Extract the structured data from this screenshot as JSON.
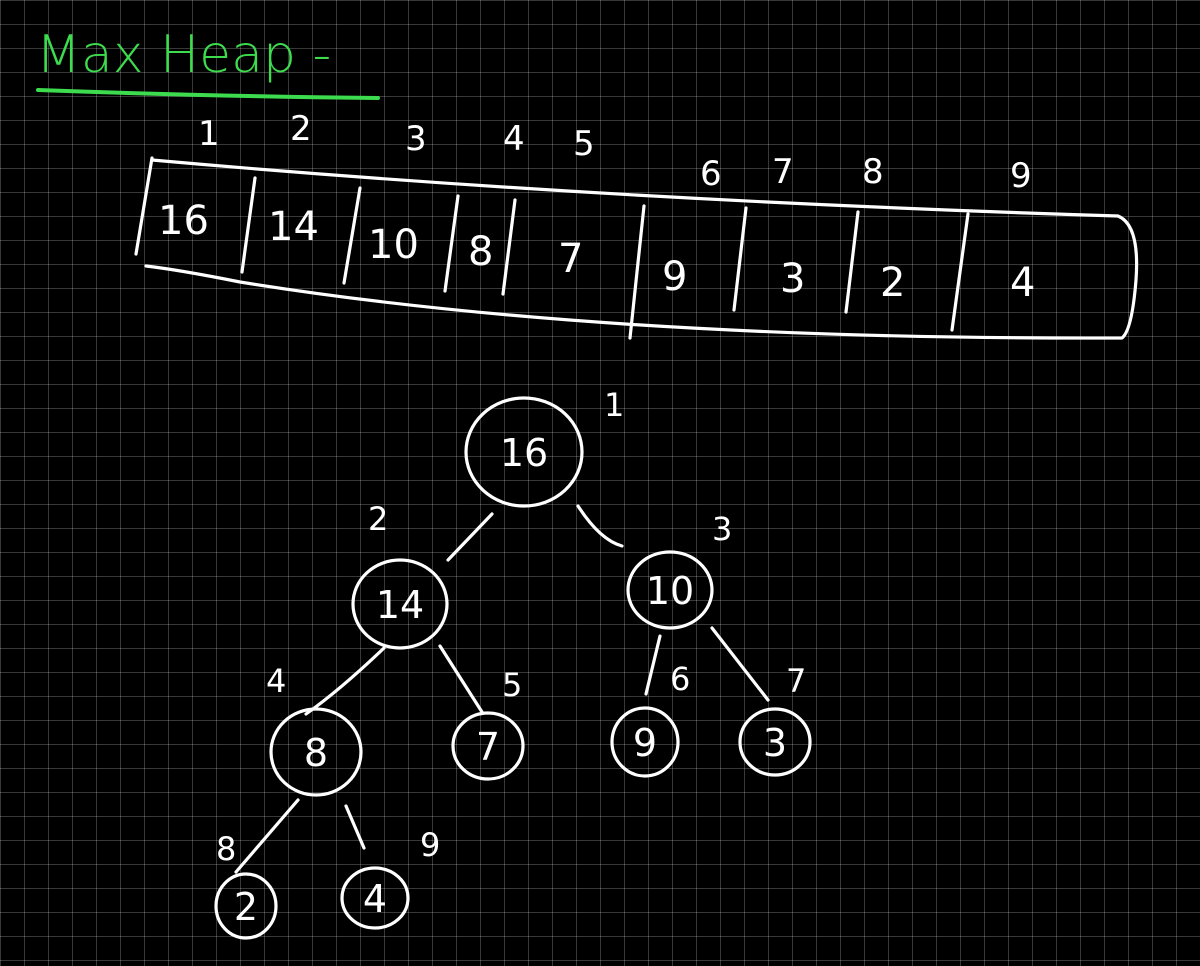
{
  "title": "Max Heap -",
  "array": {
    "indices": [
      "1",
      "2",
      "3",
      "4",
      "5",
      "6",
      "7",
      "8",
      "9"
    ],
    "values": [
      "16",
      "14",
      "10",
      "8",
      "7",
      "9",
      "3",
      "2",
      "4"
    ]
  },
  "tree": {
    "nodes": [
      {
        "index": "1",
        "value": "16"
      },
      {
        "index": "2",
        "value": "14"
      },
      {
        "index": "3",
        "value": "10"
      },
      {
        "index": "4",
        "value": "8"
      },
      {
        "index": "5",
        "value": "7"
      },
      {
        "index": "6",
        "value": "9"
      },
      {
        "index": "7",
        "value": "3"
      },
      {
        "index": "8",
        "value": "2"
      },
      {
        "index": "9",
        "value": "4"
      }
    ]
  },
  "colors": {
    "background": "#000000",
    "ink": "#ffffff",
    "title_ink": "#3ddc4f"
  }
}
